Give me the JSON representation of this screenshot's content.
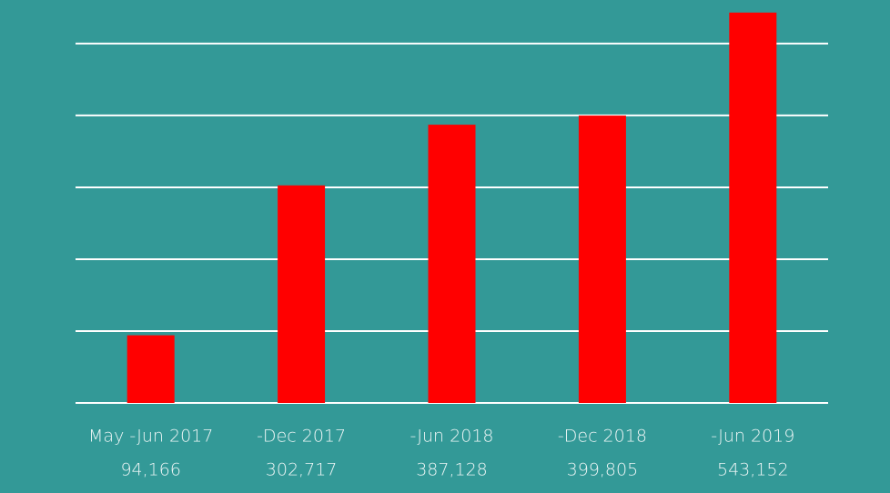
{
  "chart_data": {
    "type": "bar",
    "categories": [
      "May -Jun 2017",
      "-Dec 2017",
      "-Jun 2018",
      "-Dec 2018",
      "-Jun 2019"
    ],
    "values": [
      94166,
      302717,
      387128,
      399805,
      543152
    ],
    "value_labels": [
      "94,166",
      "302,717",
      "387,128",
      "399,805",
      "543,152"
    ],
    "color": "#ff0000",
    "ylim": [
      0,
      550000
    ],
    "yticks": [
      0,
      100000,
      200000,
      300000,
      400000,
      500000
    ],
    "grid": true
  }
}
